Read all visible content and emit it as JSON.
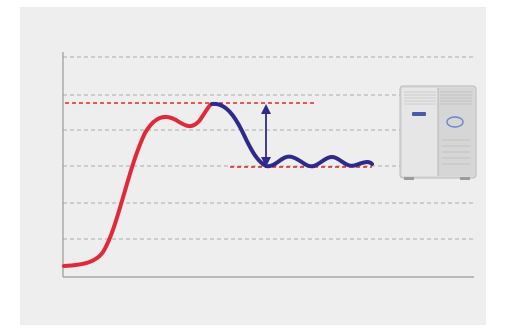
{
  "colors": {
    "panel_background": "#eeeeee",
    "grid_line": "#a9a9a9",
    "axis_line": "#9a9a9a",
    "reference_line": "#e0261f",
    "rising_curve": "#e02a3c",
    "settled_curve": "#2e2a8c",
    "overshoot_arrow": "#2e2a8c",
    "unit_body": "#dcdcdc"
  },
  "icons": {
    "outdoor_unit": "hvac-outdoor-unit-icon",
    "overshoot_arrow": "double-headed-arrow-icon"
  }
}
